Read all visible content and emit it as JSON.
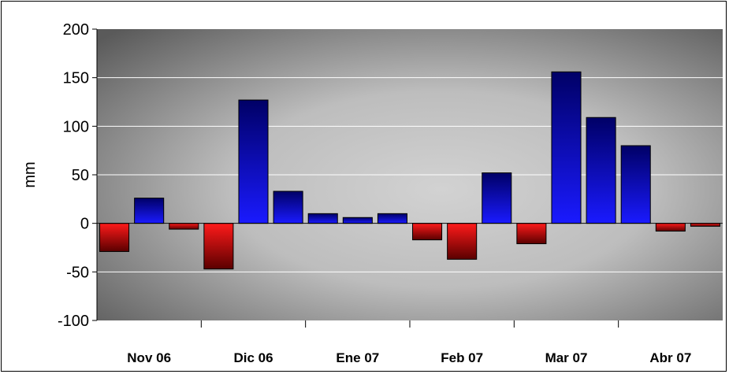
{
  "chart_data": {
    "type": "bar",
    "title": "",
    "xlabel": "",
    "ylabel": "mm",
    "ylim": [
      -100,
      200
    ],
    "yticks": [
      -100,
      -50,
      0,
      50,
      100,
      150,
      200
    ],
    "ytick_labels": [
      "-100",
      "-50",
      "0",
      "50",
      "100",
      "150",
      "200"
    ],
    "grid": true,
    "legend": "none",
    "month_labels": [
      "Nov 06",
      "Dic 06",
      "Ene 07",
      "Feb 07",
      "Mar 07",
      "Abr 07"
    ],
    "values": [
      -29,
      26,
      -6,
      -47,
      127,
      33,
      10,
      6,
      10,
      -17,
      -37,
      52,
      -21,
      156,
      109,
      80,
      -8,
      -3
    ],
    "colors": {
      "positive_light": "#1a1aff",
      "positive_dark": "#000066",
      "negative_light": "#ff1a1a",
      "negative_dark": "#5a0000",
      "plot_bg_dark": "#5a5a5a",
      "plot_bg_light": "#d2d2d2",
      "gridline": "#ffffff"
    }
  }
}
